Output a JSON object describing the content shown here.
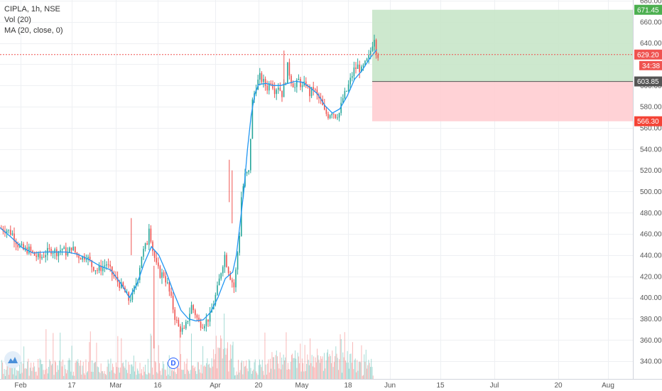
{
  "legend": {
    "symbol": "CIPLA, 1h, NSE",
    "volume": "Vol (20)",
    "ma": "MA (20, close, 0)"
  },
  "dividend_marker": "D",
  "colors": {
    "up": "#26a69a",
    "down": "#ef5350",
    "ma_line": "#2196f3",
    "target_zone": "#c8e6c9",
    "stop_zone": "#ffcdd2",
    "target_tag": "#4caf50",
    "stop_tag": "#f44336",
    "price_tag": "#ef5350",
    "entry_tag": "#555555",
    "grid": "#eef0f3"
  },
  "chart_data": {
    "type": "candlestick",
    "title": "CIPLA, 1h, NSE",
    "y_axis": {
      "min": 330,
      "max": 680,
      "ticks": [
        340,
        360,
        380,
        400,
        420,
        440,
        460,
        480,
        500,
        520,
        540,
        560,
        580,
        600,
        620,
        640,
        660,
        680
      ],
      "tick_labels": [
        "340.00",
        "360.00",
        "380.00",
        "400.00",
        "420.00",
        "440.00",
        "460.00",
        "480.00",
        "500.00",
        "520.00",
        "540.00",
        "560.00",
        "580.00",
        "600.00",
        "620.00",
        "640.00",
        "660.00",
        "680.00"
      ]
    },
    "x_axis": {
      "labels": [
        "Feb",
        "17",
        "Mar",
        "16",
        "Apr",
        "20",
        "May",
        "18",
        "Jun",
        "15",
        "Jul",
        "20",
        "Aug"
      ]
    },
    "last_price": {
      "value": 629.2,
      "label": "629.20",
      "countdown": "34:38"
    },
    "long_position": {
      "entry": 603.85,
      "entry_label": "603.85",
      "target": 671.45,
      "target_label": "671.45",
      "stop": 566.3,
      "stop_label": "566.30"
    },
    "price_path": [
      [
        0,
        465
      ],
      [
        3,
        464
      ],
      [
        6,
        460
      ],
      [
        9,
        450
      ],
      [
        12,
        445
      ],
      [
        15,
        445
      ],
      [
        18,
        440
      ],
      [
        21,
        437
      ],
      [
        24,
        442
      ],
      [
        27,
        445
      ],
      [
        30,
        443
      ],
      [
        33,
        446
      ],
      [
        36,
        441
      ],
      [
        38,
        448
      ],
      [
        41,
        440
      ],
      [
        44,
        438
      ],
      [
        46,
        440
      ],
      [
        49,
        430
      ],
      [
        52,
        426
      ],
      [
        54,
        428
      ],
      [
        57,
        432
      ],
      [
        60,
        422
      ],
      [
        63,
        415
      ],
      [
        66,
        408
      ],
      [
        69,
        398
      ],
      [
        71,
        402
      ],
      [
        74,
        420
      ],
      [
        76,
        440
      ],
      [
        79,
        452
      ],
      [
        80,
        468
      ],
      [
        82,
        445
      ],
      [
        84,
        430
      ],
      [
        86,
        422
      ],
      [
        88,
        422
      ],
      [
        90,
        412
      ],
      [
        92,
        398
      ],
      [
        94,
        382
      ],
      [
        96,
        372
      ],
      [
        99,
        368
      ],
      [
        101,
        380
      ],
      [
        103,
        392
      ],
      [
        105,
        385
      ],
      [
        107,
        376
      ],
      [
        109,
        375
      ],
      [
        111,
        378
      ],
      [
        113,
        382
      ],
      [
        115,
        395
      ],
      [
        117,
        408
      ],
      [
        119,
        425
      ],
      [
        121,
        440
      ],
      [
        122,
        432
      ],
      [
        124,
        420
      ],
      [
        126,
        410
      ],
      [
        127,
        425
      ],
      [
        129,
        460
      ],
      [
        130,
        495
      ],
      [
        132,
        515
      ],
      [
        134,
        518
      ],
      [
        136,
        585
      ],
      [
        138,
        600
      ],
      [
        140,
        608
      ],
      [
        142,
        603
      ],
      [
        144,
        598
      ],
      [
        146,
        605
      ],
      [
        148,
        596
      ],
      [
        150,
        600
      ],
      [
        152,
        592
      ],
      [
        154,
        606
      ],
      [
        155,
        618
      ],
      [
        157,
        605
      ],
      [
        159,
        598
      ],
      [
        161,
        605
      ],
      [
        163,
        598
      ],
      [
        165,
        602
      ],
      [
        167,
        592
      ],
      [
        169,
        598
      ],
      [
        171,
        590
      ],
      [
        173,
        585
      ],
      [
        175,
        575
      ],
      [
        177,
        572
      ],
      [
        179,
        576
      ],
      [
        181,
        572
      ],
      [
        183,
        574
      ],
      [
        185,
        588
      ],
      [
        187,
        595
      ],
      [
        189,
        605
      ],
      [
        191,
        615
      ],
      [
        193,
        618
      ],
      [
        195,
        614
      ],
      [
        197,
        620
      ],
      [
        199,
        626
      ],
      [
        201,
        640
      ],
      [
        202,
        646
      ],
      [
        203,
        633
      ],
      [
        204,
        629
      ]
    ],
    "ma_path": [
      [
        0,
        466
      ],
      [
        6,
        457
      ],
      [
        12,
        447
      ],
      [
        18,
        442
      ],
      [
        24,
        443
      ],
      [
        30,
        443
      ],
      [
        36,
        443
      ],
      [
        42,
        441
      ],
      [
        48,
        436
      ],
      [
        54,
        430
      ],
      [
        60,
        426
      ],
      [
        66,
        412
      ],
      [
        70,
        400
      ],
      [
        74,
        412
      ],
      [
        78,
        432
      ],
      [
        82,
        448
      ],
      [
        86,
        440
      ],
      [
        90,
        424
      ],
      [
        94,
        405
      ],
      [
        98,
        388
      ],
      [
        102,
        380
      ],
      [
        106,
        378
      ],
      [
        110,
        379
      ],
      [
        114,
        386
      ],
      [
        118,
        400
      ],
      [
        122,
        418
      ],
      [
        126,
        424
      ],
      [
        128,
        440
      ],
      [
        130,
        470
      ],
      [
        132,
        500
      ],
      [
        134,
        540
      ],
      [
        136,
        572
      ],
      [
        138,
        592
      ],
      [
        140,
        601
      ],
      [
        144,
        602
      ],
      [
        148,
        600
      ],
      [
        152,
        600
      ],
      [
        156,
        602
      ],
      [
        160,
        604
      ],
      [
        164,
        603
      ],
      [
        168,
        598
      ],
      [
        172,
        592
      ],
      [
        176,
        581
      ],
      [
        180,
        574
      ],
      [
        184,
        578
      ],
      [
        188,
        590
      ],
      [
        192,
        606
      ],
      [
        196,
        614
      ],
      [
        200,
        625
      ],
      [
        204,
        634
      ]
    ],
    "volume_bars": 420
  }
}
